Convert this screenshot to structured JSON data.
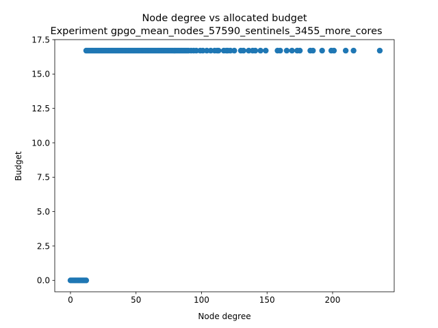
{
  "chart_data": {
    "type": "scatter",
    "title": "Node degree vs allocated budget",
    "subtitle": "Experiment gpgo_mean_nodes_57590_sentinels_3455_more_cores",
    "xlabel": "Node degree",
    "ylabel": "Budget",
    "xlim": [
      -12,
      247
    ],
    "ylim": [
      -0.83,
      17.5
    ],
    "xticks": [
      0,
      50,
      100,
      150,
      200
    ],
    "xtick_labels": [
      "0",
      "50",
      "100",
      "150",
      "200"
    ],
    "yticks": [
      0.0,
      2.5,
      5.0,
      7.5,
      10.0,
      12.5,
      15.0,
      17.5
    ],
    "ytick_labels": [
      "0.0",
      "2.5",
      "5.0",
      "7.5",
      "10.0",
      "12.5",
      "15.0",
      "17.5"
    ],
    "grid": false,
    "marker_color": "#1f77b4",
    "series": [
      {
        "points": [
          {
            "x": 0,
            "y": 0
          },
          {
            "x": 1,
            "y": 0
          },
          {
            "x": 2,
            "y": 0
          },
          {
            "x": 3,
            "y": 0
          },
          {
            "x": 4,
            "y": 0
          },
          {
            "x": 5,
            "y": 0
          },
          {
            "x": 6,
            "y": 0
          },
          {
            "x": 7,
            "y": 0
          },
          {
            "x": 8,
            "y": 0
          },
          {
            "x": 9,
            "y": 0
          },
          {
            "x": 10,
            "y": 0
          },
          {
            "x": 11,
            "y": 0
          },
          {
            "x": 12,
            "y": 0
          },
          {
            "x": 12,
            "y": 16.7
          },
          {
            "x": 13,
            "y": 16.7
          },
          {
            "x": 14,
            "y": 16.7
          },
          {
            "x": 15,
            "y": 16.7
          },
          {
            "x": 16,
            "y": 16.7
          },
          {
            "x": 17,
            "y": 16.7
          },
          {
            "x": 18,
            "y": 16.7
          },
          {
            "x": 19,
            "y": 16.7
          },
          {
            "x": 20,
            "y": 16.7
          },
          {
            "x": 21,
            "y": 16.7
          },
          {
            "x": 22,
            "y": 16.7
          },
          {
            "x": 23,
            "y": 16.7
          },
          {
            "x": 24,
            "y": 16.7
          },
          {
            "x": 25,
            "y": 16.7
          },
          {
            "x": 26,
            "y": 16.7
          },
          {
            "x": 27,
            "y": 16.7
          },
          {
            "x": 28,
            "y": 16.7
          },
          {
            "x": 29,
            "y": 16.7
          },
          {
            "x": 30,
            "y": 16.7
          },
          {
            "x": 31,
            "y": 16.7
          },
          {
            "x": 32,
            "y": 16.7
          },
          {
            "x": 33,
            "y": 16.7
          },
          {
            "x": 34,
            "y": 16.7
          },
          {
            "x": 35,
            "y": 16.7
          },
          {
            "x": 36,
            "y": 16.7
          },
          {
            "x": 37,
            "y": 16.7
          },
          {
            "x": 38,
            "y": 16.7
          },
          {
            "x": 39,
            "y": 16.7
          },
          {
            "x": 40,
            "y": 16.7
          },
          {
            "x": 41,
            "y": 16.7
          },
          {
            "x": 42,
            "y": 16.7
          },
          {
            "x": 43,
            "y": 16.7
          },
          {
            "x": 44,
            "y": 16.7
          },
          {
            "x": 45,
            "y": 16.7
          },
          {
            "x": 46,
            "y": 16.7
          },
          {
            "x": 47,
            "y": 16.7
          },
          {
            "x": 48,
            "y": 16.7
          },
          {
            "x": 49,
            "y": 16.7
          },
          {
            "x": 50,
            "y": 16.7
          },
          {
            "x": 51,
            "y": 16.7
          },
          {
            "x": 52,
            "y": 16.7
          },
          {
            "x": 53,
            "y": 16.7
          },
          {
            "x": 54,
            "y": 16.7
          },
          {
            "x": 55,
            "y": 16.7
          },
          {
            "x": 56,
            "y": 16.7
          },
          {
            "x": 57,
            "y": 16.7
          },
          {
            "x": 58,
            "y": 16.7
          },
          {
            "x": 59,
            "y": 16.7
          },
          {
            "x": 60,
            "y": 16.7
          },
          {
            "x": 61,
            "y": 16.7
          },
          {
            "x": 62,
            "y": 16.7
          },
          {
            "x": 63,
            "y": 16.7
          },
          {
            "x": 64,
            "y": 16.7
          },
          {
            "x": 65,
            "y": 16.7
          },
          {
            "x": 66,
            "y": 16.7
          },
          {
            "x": 67,
            "y": 16.7
          },
          {
            "x": 68,
            "y": 16.7
          },
          {
            "x": 69,
            "y": 16.7
          },
          {
            "x": 70,
            "y": 16.7
          },
          {
            "x": 71,
            "y": 16.7
          },
          {
            "x": 72,
            "y": 16.7
          },
          {
            "x": 73,
            "y": 16.7
          },
          {
            "x": 74,
            "y": 16.7
          },
          {
            "x": 75,
            "y": 16.7
          },
          {
            "x": 76,
            "y": 16.7
          },
          {
            "x": 77,
            "y": 16.7
          },
          {
            "x": 78,
            "y": 16.7
          },
          {
            "x": 79,
            "y": 16.7
          },
          {
            "x": 80,
            "y": 16.7
          },
          {
            "x": 81,
            "y": 16.7
          },
          {
            "x": 82,
            "y": 16.7
          },
          {
            "x": 83,
            "y": 16.7
          },
          {
            "x": 84,
            "y": 16.7
          },
          {
            "x": 85,
            "y": 16.7
          },
          {
            "x": 86,
            "y": 16.7
          },
          {
            "x": 87,
            "y": 16.7
          },
          {
            "x": 88,
            "y": 16.7
          },
          {
            "x": 89,
            "y": 16.7
          },
          {
            "x": 90,
            "y": 16.7
          },
          {
            "x": 92,
            "y": 16.7
          },
          {
            "x": 94,
            "y": 16.7
          },
          {
            "x": 96,
            "y": 16.7
          },
          {
            "x": 99,
            "y": 16.7
          },
          {
            "x": 101,
            "y": 16.7
          },
          {
            "x": 104,
            "y": 16.7
          },
          {
            "x": 107,
            "y": 16.7
          },
          {
            "x": 110,
            "y": 16.7
          },
          {
            "x": 112,
            "y": 16.7
          },
          {
            "x": 113,
            "y": 16.7
          },
          {
            "x": 117,
            "y": 16.7
          },
          {
            "x": 119,
            "y": 16.7
          },
          {
            "x": 120,
            "y": 16.7
          },
          {
            "x": 122,
            "y": 16.7
          },
          {
            "x": 125,
            "y": 16.7
          },
          {
            "x": 130,
            "y": 16.7
          },
          {
            "x": 132,
            "y": 16.7
          },
          {
            "x": 136,
            "y": 16.7
          },
          {
            "x": 139,
            "y": 16.7
          },
          {
            "x": 141,
            "y": 16.7
          },
          {
            "x": 145,
            "y": 16.7
          },
          {
            "x": 149,
            "y": 16.7
          },
          {
            "x": 158,
            "y": 16.7
          },
          {
            "x": 160,
            "y": 16.7
          },
          {
            "x": 165,
            "y": 16.7
          },
          {
            "x": 169,
            "y": 16.7
          },
          {
            "x": 173,
            "y": 16.7
          },
          {
            "x": 175,
            "y": 16.7
          },
          {
            "x": 183,
            "y": 16.7
          },
          {
            "x": 185,
            "y": 16.7
          },
          {
            "x": 192,
            "y": 16.7
          },
          {
            "x": 199,
            "y": 16.7
          },
          {
            "x": 201,
            "y": 16.7
          },
          {
            "x": 210,
            "y": 16.7
          },
          {
            "x": 216,
            "y": 16.7
          },
          {
            "x": 236,
            "y": 16.7
          }
        ]
      }
    ]
  }
}
